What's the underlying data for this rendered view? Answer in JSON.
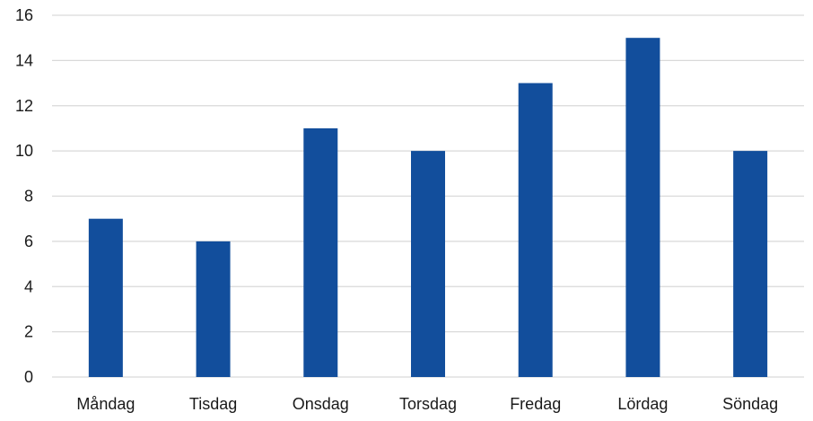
{
  "chart_data": {
    "type": "bar",
    "categories": [
      "Måndag",
      "Tisdag",
      "Onsdag",
      "Torsdag",
      "Fredag",
      "Lördag",
      "Söndag"
    ],
    "values": [
      7,
      6,
      11,
      10,
      13,
      15,
      10
    ],
    "title": "",
    "xlabel": "",
    "ylabel": "",
    "ylim": [
      0,
      16
    ],
    "yticks": [
      0,
      2,
      4,
      6,
      8,
      10,
      12,
      14,
      16
    ],
    "grid": true,
    "legend": "none",
    "colors": {
      "bar": "#124e9c",
      "grid": "#d9d9d9"
    }
  }
}
